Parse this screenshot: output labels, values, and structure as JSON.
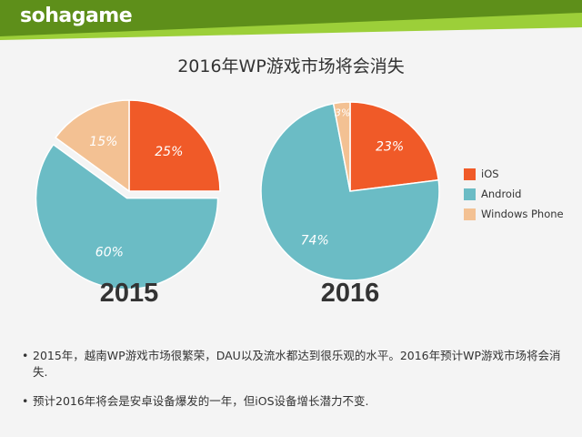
{
  "header": {
    "logo": "sohagame",
    "colors": {
      "dark_green": "#5e8f1a",
      "light_green": "#9ccf39"
    }
  },
  "title": "2016年WP游戏市场将会消失",
  "colors": {
    "iOS": "#f05a28",
    "Android": "#6bbcc5",
    "Windows Phone": "#f3c193"
  },
  "chart_data": [
    {
      "type": "pie",
      "title": "2015",
      "categories": [
        "iOS",
        "Android",
        "Windows Phone"
      ],
      "values": [
        25,
        60,
        15
      ],
      "labels": [
        "25%",
        "60%",
        "15%"
      ]
    },
    {
      "type": "pie",
      "title": "2016",
      "categories": [
        "iOS",
        "Android",
        "Windows Phone"
      ],
      "values": [
        23,
        74,
        3
      ],
      "labels": [
        "23%",
        "74%",
        "3%"
      ]
    }
  ],
  "legend": [
    "iOS",
    "Android",
    "Windows Phone"
  ],
  "notes": [
    "2015年，越南WP游戏市场很繁荣，DAU以及流水都达到很乐观的水平。2016年预计WP游戏市场将会消失.",
    "预计2016年将会是安卓设备爆发的一年，但iOS设备增长潜力不变."
  ],
  "bullet": "•"
}
